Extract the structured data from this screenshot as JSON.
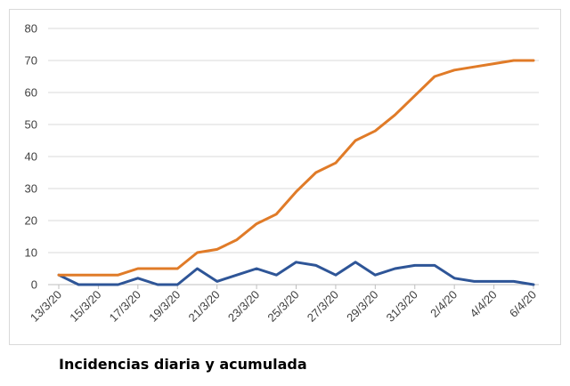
{
  "chart_data": {
    "type": "line",
    "title": "",
    "xlabel": "",
    "ylabel": "",
    "ylim": [
      0,
      80
    ],
    "yticks": [
      0,
      10,
      20,
      30,
      40,
      50,
      60,
      70,
      80
    ],
    "grid": "horizontal",
    "legend": "none",
    "x": [
      "13/3/20",
      "14/3/20",
      "15/3/20",
      "16/3/20",
      "17/3/20",
      "18/3/20",
      "19/3/20",
      "20/3/20",
      "21/3/20",
      "22/3/20",
      "23/3/20",
      "24/3/20",
      "25/3/20",
      "26/3/20",
      "27/3/20",
      "28/3/20",
      "29/3/20",
      "30/3/20",
      "31/3/20",
      "1/4/20",
      "2/4/20",
      "3/4/20",
      "4/4/20",
      "5/4/20",
      "6/4/20"
    ],
    "x_tick_labels": [
      "13/3/20",
      "15/3/20",
      "17/3/20",
      "19/3/20",
      "21/3/20",
      "23/3/20",
      "25/3/20",
      "27/3/20",
      "29/3/20",
      "31/3/20",
      "2/4/20",
      "4/4/20",
      "6/4/20"
    ],
    "series": [
      {
        "color": "#2E5597",
        "values": [
          3,
          0,
          0,
          0,
          2,
          0,
          0,
          5,
          1,
          3,
          5,
          3,
          7,
          6,
          3,
          7,
          3,
          5,
          6,
          6,
          2,
          1,
          1,
          1,
          0
        ]
      },
      {
        "color": "#E07B28",
        "values": [
          3,
          3,
          3,
          3,
          5,
          5,
          5,
          10,
          11,
          14,
          19,
          22,
          29,
          35,
          38,
          45,
          48,
          53,
          59,
          65,
          67,
          68,
          69,
          70,
          70
        ]
      }
    ]
  },
  "caption": "Incidencias diaria y acumulada"
}
